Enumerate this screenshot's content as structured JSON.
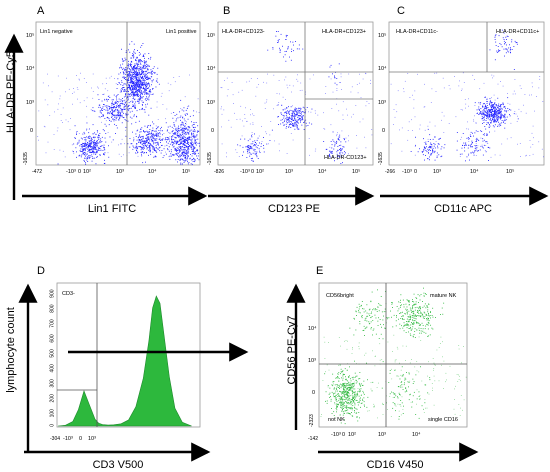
{
  "chart_data": [
    {
      "panel": "A",
      "type": "scatter",
      "xlabel": "Lin1 FITC",
      "ylabel": "HLA-DR PE-Cy5",
      "quadrant_labels": [
        "Lin1 negative",
        "Lin1 positive"
      ],
      "x_ticks": [
        "-10³",
        "0",
        "10²",
        "10³",
        "10⁴",
        "10⁵"
      ],
      "y_ticks": [
        "0",
        "10³",
        "10⁴",
        "10⁵"
      ],
      "x_min_label": "-472",
      "y_min_label": "-1635",
      "color": "#1f1fff",
      "populations": [
        {
          "x": 1.75,
          "y": 0.05,
          "count": 900
        },
        {
          "x": 2.55,
          "y": 1.05,
          "count": 700
        },
        {
          "x": 3.25,
          "y": 1.9,
          "count": 2400
        },
        {
          "x": 3.7,
          "y": 0.2,
          "count": 900
        },
        {
          "x": 4.8,
          "y": 0.15,
          "count": 1600
        }
      ]
    },
    {
      "panel": "B",
      "type": "scatter",
      "xlabel": "CD123 PE",
      "ylabel": "",
      "quadrant_labels": [
        "HLA-DR+CD123-",
        "HLA-DR+CD123+",
        "HLA-DR-CD123+"
      ],
      "x_ticks": [
        "-10³",
        "0",
        "10²",
        "10³",
        "10⁴",
        "10⁵"
      ],
      "y_ticks": [
        "0",
        "10³",
        "10⁴",
        "10⁵"
      ],
      "x_min_label": "-826",
      "y_min_label": "-1635",
      "color": "#1f1fff",
      "populations": [
        {
          "x": 1.15,
          "y": 0.0,
          "count": 250
        },
        {
          "x": 2.55,
          "y": 0.85,
          "count": 600
        },
        {
          "x": 4.05,
          "y": -0.05,
          "count": 220
        },
        {
          "x": 2.3,
          "y": 2.85,
          "count": 120
        },
        {
          "x": 4.0,
          "y": 2.0,
          "count": 40
        }
      ]
    },
    {
      "panel": "C",
      "type": "scatter",
      "xlabel": "CD11c APC",
      "ylabel": "",
      "quadrant_labels": [
        "HLA-DR+CD11c-",
        "HLA-DR+CD11c+"
      ],
      "x_ticks": [
        "-10³",
        "0",
        "10³",
        "10⁴",
        "10⁵"
      ],
      "y_ticks": [
        "0",
        "10³",
        "10⁴",
        "10⁵"
      ],
      "x_min_label": "-266",
      "y_min_label": "-1635",
      "color": "#1f1fff",
      "populations": [
        {
          "x": 1.3,
          "y": 0.0,
          "count": 250
        },
        {
          "x": 3.35,
          "y": 1.0,
          "count": 1100
        },
        {
          "x": 3.7,
          "y": 2.9,
          "count": 160
        },
        {
          "x": 2.7,
          "y": 0.1,
          "count": 250
        }
      ]
    },
    {
      "panel": "D",
      "type": "area",
      "xlabel": "CD3 V500",
      "ylabel": "lymphocyte count",
      "gate_label": "CD3-",
      "x": [
        0,
        0.2,
        0.4,
        0.55,
        0.7,
        0.85,
        1.0,
        1.1,
        1.2,
        1.35,
        1.5,
        1.7,
        1.9,
        2.1,
        2.3,
        2.45,
        2.55,
        2.65,
        2.75,
        2.85,
        3.0,
        3.15,
        3.35,
        3.6
      ],
      "y": [
        0,
        5,
        30,
        110,
        235,
        140,
        45,
        18,
        10,
        6,
        8,
        15,
        40,
        130,
        320,
        570,
        790,
        870,
        820,
        620,
        330,
        120,
        25,
        0
      ],
      "y_ticks": [
        "0",
        "100",
        "200",
        "300",
        "400",
        "500",
        "600",
        "700",
        "800",
        "900"
      ],
      "x_ticks": [
        "-10³",
        "0",
        "10³"
      ],
      "x_min_label": "-304",
      "color": "#2db83d"
    },
    {
      "panel": "E",
      "type": "scatter",
      "xlabel": "CD16 V450",
      "ylabel": "CD56 PE-Cy7",
      "quadrant_labels": [
        "CD56bright",
        "mature NK",
        "not NK",
        "single CD16"
      ],
      "x_ticks": [
        "-10³",
        "0",
        "10²",
        "10³",
        "10⁴"
      ],
      "y_ticks": [
        "0",
        "10³",
        "10⁴"
      ],
      "x_min_label": "-142",
      "y_min_label": "-2323",
      "color": "#2db83d",
      "populations": [
        {
          "x": 0.85,
          "y": 0.2,
          "count": 1300
        },
        {
          "x": 3.0,
          "y": 2.4,
          "count": 800
        },
        {
          "x": 1.6,
          "y": 2.4,
          "count": 300
        },
        {
          "x": 2.6,
          "y": 0.3,
          "count": 250
        }
      ]
    }
  ]
}
